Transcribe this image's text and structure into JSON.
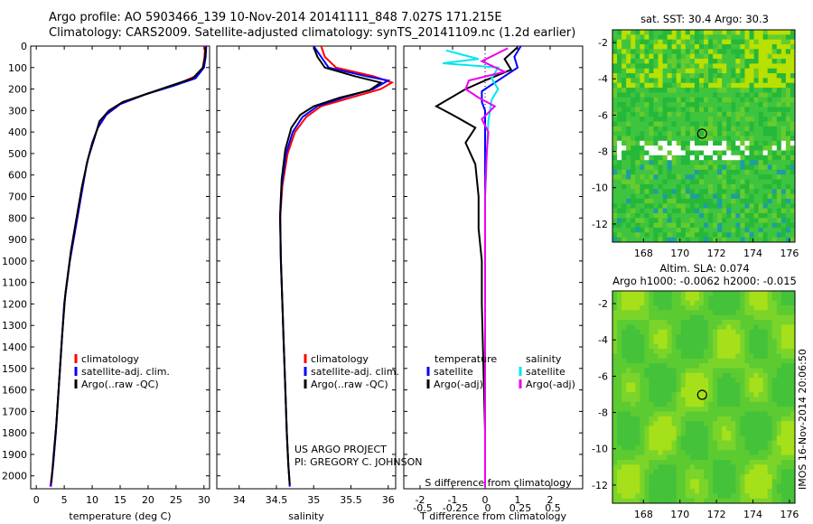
{
  "header": {
    "line1": "Argo profile: AO 5903466_139 10-Nov-2014 20141111_848 7.027S 171.215E",
    "line2": "Climatology: CARS2009. Satellite-adjusted climatology: synTS_20141109.nc (1.2d earlier)"
  },
  "map1": {
    "title": "sat. SST: 30.4 Argo: 30.3"
  },
  "map2": {
    "title1": "Altim. SLA: 0.074",
    "title2": "Argo h1000: -0.0062 h2000: -0.015"
  },
  "imos_label": "IMOS 16-Nov-2014 20:06:50",
  "colors": {
    "climatology": "#ff0000",
    "satellite": "#0000ff",
    "argo": "#000000",
    "sal_sat": "#00e5ee",
    "sal_argo": "#ee00ee"
  },
  "chart_data": [
    {
      "type": "line",
      "panel": "temperature",
      "xlabel": "temperature (deg C)",
      "ylabel": "",
      "xlim": [
        -1,
        31
      ],
      "ylim": [
        2060,
        0
      ],
      "xticks": [
        0,
        5,
        10,
        15,
        20,
        25,
        30
      ],
      "yticks": [
        0,
        100,
        200,
        300,
        400,
        500,
        600,
        700,
        800,
        900,
        1000,
        1100,
        1200,
        1300,
        1400,
        1500,
        1600,
        1700,
        1800,
        1900,
        2000
      ],
      "legend": [
        "climatology",
        "satellite-adj. clim.",
        "Argo(..raw -QC)"
      ],
      "series": [
        {
          "name": "climatology",
          "color": "#ff0000",
          "points": [
            [
              30.2,
              0
            ],
            [
              30.1,
              50
            ],
            [
              29.8,
              100
            ],
            [
              28.5,
              140
            ],
            [
              25,
              180
            ],
            [
              20,
              220
            ],
            [
              15,
              270
            ],
            [
              12.5,
              320
            ],
            [
              11,
              380
            ],
            [
              10,
              450
            ],
            [
              9,
              550
            ],
            [
              8,
              700
            ],
            [
              7,
              850
            ],
            [
              6,
              1000
            ],
            [
              5,
              1200
            ],
            [
              4.5,
              1400
            ],
            [
              4,
              1600
            ],
            [
              3.5,
              1800
            ],
            [
              3,
              1950
            ],
            [
              2.5,
              2050
            ]
          ]
        },
        {
          "name": "satellite-adj. clim.",
          "color": "#0000ff",
          "points": [
            [
              30.4,
              0
            ],
            [
              30.3,
              50
            ],
            [
              30,
              100
            ],
            [
              28.5,
              150
            ],
            [
              24.5,
              185
            ],
            [
              19.5,
              225
            ],
            [
              15,
              270
            ],
            [
              12.5,
              320
            ],
            [
              11,
              380
            ],
            [
              10,
              450
            ],
            [
              9,
              550
            ],
            [
              8,
              700
            ],
            [
              7,
              850
            ],
            [
              6,
              1000
            ],
            [
              5,
              1200
            ],
            [
              4.5,
              1400
            ],
            [
              4,
              1600
            ],
            [
              3.5,
              1800
            ],
            [
              3,
              1950
            ],
            [
              2.6,
              2050
            ]
          ]
        },
        {
          "name": "Argo(..raw -QC)",
          "color": "#000000",
          "points": [
            [
              30.3,
              5
            ],
            [
              30.2,
              50
            ],
            [
              29.8,
              100
            ],
            [
              28,
              150
            ],
            [
              24,
              185
            ],
            [
              19.5,
              225
            ],
            [
              15.5,
              260
            ],
            [
              13,
              300
            ],
            [
              11.3,
              350
            ],
            [
              10.5,
              420
            ],
            [
              9.3,
              520
            ],
            [
              8.2,
              650
            ],
            [
              7.2,
              800
            ],
            [
              6.2,
              950
            ],
            [
              5.2,
              1150
            ],
            [
              4.6,
              1350
            ],
            [
              4.1,
              1550
            ],
            [
              3.6,
              1750
            ],
            [
              3.1,
              1900
            ],
            [
              2.7,
              2030
            ]
          ]
        }
      ]
    },
    {
      "type": "line",
      "panel": "salinity",
      "xlabel": "salinity",
      "ylabel": "",
      "xlim": [
        33.7,
        36.1
      ],
      "ylim": [
        2060,
        0
      ],
      "xticks": [
        34,
        34.5,
        35,
        35.5,
        36
      ],
      "legend": [
        "climatology",
        "satellite-adj. clim.",
        "Argo(..raw -QC)"
      ],
      "annotation": [
        "US ARGO PROJECT",
        "PI: GREGORY C. JOHNSON"
      ],
      "series": [
        {
          "name": "climatology",
          "color": "#ff0000",
          "points": [
            [
              35.1,
              0
            ],
            [
              35.15,
              50
            ],
            [
              35.3,
              100
            ],
            [
              35.8,
              140
            ],
            [
              36.05,
              170
            ],
            [
              35.9,
              200
            ],
            [
              35.5,
              240
            ],
            [
              35.1,
              280
            ],
            [
              34.9,
              330
            ],
            [
              34.75,
              400
            ],
            [
              34.65,
              500
            ],
            [
              34.58,
              650
            ],
            [
              34.55,
              800
            ],
            [
              34.56,
              1000
            ],
            [
              34.58,
              1200
            ],
            [
              34.6,
              1400
            ],
            [
              34.62,
              1600
            ],
            [
              34.64,
              1800
            ],
            [
              34.66,
              1950
            ],
            [
              34.68,
              2050
            ]
          ]
        },
        {
          "name": "satellite-adj. clim.",
          "color": "#0000ff",
          "points": [
            [
              35.0,
              0
            ],
            [
              35.1,
              50
            ],
            [
              35.2,
              100
            ],
            [
              35.7,
              140
            ],
            [
              36.0,
              160
            ],
            [
              35.8,
              200
            ],
            [
              35.4,
              240
            ],
            [
              35.05,
              280
            ],
            [
              34.85,
              330
            ],
            [
              34.72,
              400
            ],
            [
              34.63,
              500
            ],
            [
              34.57,
              650
            ],
            [
              34.55,
              800
            ],
            [
              34.56,
              1000
            ],
            [
              34.58,
              1200
            ],
            [
              34.6,
              1400
            ],
            [
              34.62,
              1600
            ],
            [
              34.64,
              1800
            ],
            [
              34.66,
              1950
            ],
            [
              34.68,
              2050
            ]
          ]
        },
        {
          "name": "Argo(..raw -QC)",
          "color": "#000000",
          "points": [
            [
              35.0,
              5
            ],
            [
              35.05,
              50
            ],
            [
              35.15,
              100
            ],
            [
              35.55,
              140
            ],
            [
              35.9,
              170
            ],
            [
              35.75,
              205
            ],
            [
              35.35,
              240
            ],
            [
              35.0,
              280
            ],
            [
              34.82,
              320
            ],
            [
              34.7,
              380
            ],
            [
              34.62,
              480
            ],
            [
              34.57,
              620
            ],
            [
              34.55,
              780
            ],
            [
              34.56,
              980
            ],
            [
              34.58,
              1200
            ],
            [
              34.6,
              1400
            ],
            [
              34.62,
              1600
            ],
            [
              34.64,
              1800
            ],
            [
              34.66,
              1950
            ],
            [
              34.68,
              2040
            ]
          ]
        }
      ]
    },
    {
      "type": "line",
      "panel": "difference",
      "xlabel": "T difference from climatology",
      "xlabel_top": "S difference from climatology",
      "ylabel": "",
      "xlim": [
        -2.5,
        3
      ],
      "ylim": [
        2060,
        0
      ],
      "xticks": [
        -2,
        -1,
        0,
        1,
        2
      ],
      "sticks": [
        "-0.5",
        "-0.25",
        "0",
        "0.25",
        "0.5"
      ],
      "legend": [
        "temperature",
        "satellite",
        "Argo(-adj)",
        "salinity",
        "satellite",
        "Argo(-adj)"
      ],
      "series": [
        {
          "name": "satellite",
          "color": "#0000ff",
          "points": [
            [
              1.1,
              0
            ],
            [
              0.9,
              50
            ],
            [
              1.0,
              100
            ],
            [
              0.5,
              150
            ],
            [
              0.2,
              180
            ],
            [
              -0.1,
              210
            ],
            [
              -0.1,
              260
            ],
            [
              0.0,
              300
            ],
            [
              0.0,
              400
            ],
            [
              0.0,
              600
            ],
            [
              0.0,
              800
            ],
            [
              0.0,
              1000
            ],
            [
              0.0,
              1200
            ],
            [
              0.0,
              1500
            ],
            [
              0.0,
              1800
            ],
            [
              0.0,
              2050
            ]
          ]
        },
        {
          "name": "Argo(-adj)",
          "color": "#000000",
          "points": [
            [
              1.0,
              5
            ],
            [
              0.6,
              60
            ],
            [
              0.8,
              110
            ],
            [
              0.0,
              160
            ],
            [
              -0.6,
              200
            ],
            [
              -1.5,
              280
            ],
            [
              -1.0,
              320
            ],
            [
              -0.3,
              380
            ],
            [
              -0.6,
              450
            ],
            [
              -0.3,
              550
            ],
            [
              -0.2,
              700
            ],
            [
              -0.2,
              850
            ],
            [
              -0.1,
              1000
            ],
            [
              -0.1,
              1200
            ],
            [
              -0.05,
              1500
            ],
            [
              0.0,
              1800
            ],
            [
              0.0,
              2050
            ]
          ]
        },
        {
          "name": "satellite",
          "color": "#00e5ee",
          "points": [
            [
              -1.2,
              20
            ],
            [
              -0.2,
              60
            ],
            [
              -1.3,
              80
            ],
            [
              0.4,
              100
            ],
            [
              0.2,
              150
            ],
            [
              0.4,
              200
            ],
            [
              0.2,
              250
            ],
            [
              0.1,
              350
            ],
            [
              0.05,
              500
            ],
            [
              0.0,
              700
            ],
            [
              0.0,
              900
            ],
            [
              0.0,
              1200
            ],
            [
              0.0,
              1500
            ],
            [
              0.0,
              2050
            ]
          ]
        },
        {
          "name": "Argo(-adj)",
          "color": "#ee00ee",
          "points": [
            [
              0.7,
              10
            ],
            [
              -0.1,
              70
            ],
            [
              0.6,
              120
            ],
            [
              -0.5,
              160
            ],
            [
              -0.6,
              200
            ],
            [
              -0.2,
              240
            ],
            [
              0.3,
              280
            ],
            [
              -0.1,
              340
            ],
            [
              0.1,
              400
            ],
            [
              0.05,
              500
            ],
            [
              0.0,
              700
            ],
            [
              0.0,
              900
            ],
            [
              0.0,
              1200
            ],
            [
              0.0,
              1500
            ],
            [
              0.0,
              2050
            ]
          ]
        }
      ]
    },
    {
      "type": "heatmap",
      "panel": "map-sst",
      "xlim": [
        166.3,
        176.3
      ],
      "ylim": [
        -13.0,
        -1.3
      ],
      "xticks": [
        168,
        170,
        172,
        174,
        176
      ],
      "yticks": [
        -2,
        -4,
        -6,
        -8,
        -10,
        -12
      ],
      "marker": [
        171.215,
        -7.027
      ]
    },
    {
      "type": "heatmap",
      "panel": "map-sla",
      "xlim": [
        166.3,
        176.3
      ],
      "ylim": [
        -13.0,
        -1.3
      ],
      "xticks": [
        168,
        170,
        172,
        174,
        176
      ],
      "yticks": [
        -2,
        -4,
        -6,
        -8,
        -10,
        -12
      ],
      "marker": [
        171.215,
        -7.027
      ]
    }
  ]
}
